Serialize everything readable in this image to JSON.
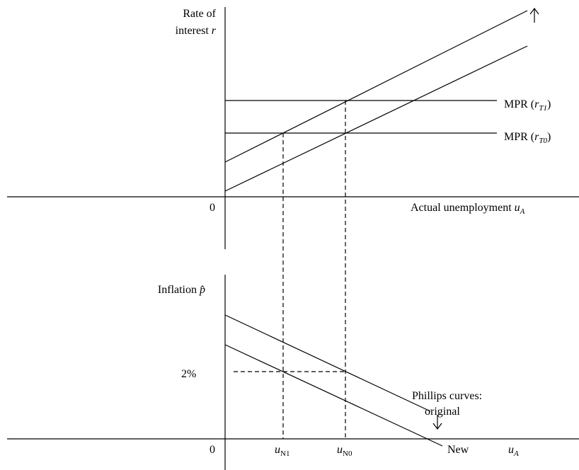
{
  "top_panel": {
    "y_label_line1": "Rate of",
    "y_label_line2": {
      "text": "interest ",
      "var": "r"
    },
    "mpr_upper": {
      "text": "MPR (",
      "var": "r",
      "sub": "T1",
      "close": ")"
    },
    "mpr_lower": {
      "text": "MPR (",
      "var": "r",
      "sub": "T0",
      "close": ")"
    },
    "origin": "0",
    "x_label": {
      "text": "Actual unemployment ",
      "var": "u",
      "sub": "A"
    }
  },
  "bottom_panel": {
    "y_label": {
      "text": "Inflation ",
      "var": "p̂"
    },
    "target": "2%",
    "curves_label_line1": "Phillips curves:",
    "curves_label_line2": "original",
    "new_label": "New",
    "origin": "0",
    "x_ticks": [
      {
        "var": "u",
        "sub": "N1"
      },
      {
        "var": "u",
        "sub": "N0"
      }
    ],
    "x_label": {
      "var": "u",
      "sub": "A"
    }
  }
}
